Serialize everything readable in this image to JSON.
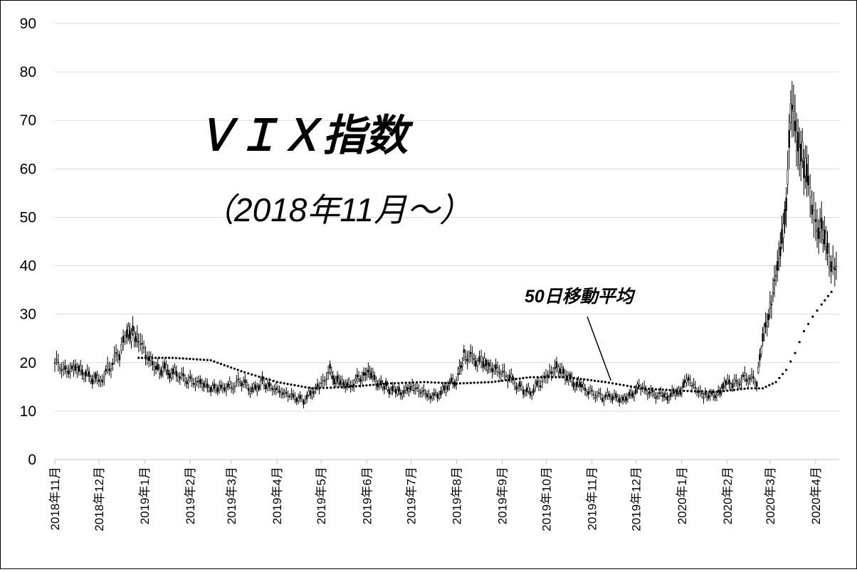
{
  "chart_data": {
    "type": "candlestick",
    "title": "ＶＩＸ指数",
    "subtitle": "（2018年11月～）",
    "ylim": [
      0,
      90
    ],
    "yticks": [
      0,
      10,
      20,
      30,
      40,
      50,
      60,
      70,
      80,
      90
    ],
    "grid": true,
    "month_labels": [
      "2018年11月",
      "2018年12月",
      "2019年1月",
      "2019年2月",
      "2019年3月",
      "2019年4月",
      "2019年5月",
      "2019年6月",
      "2019年7月",
      "2019年8月",
      "2019年9月",
      "2019年10月",
      "2019年11月",
      "2019年12月",
      "2020年1月",
      "2020年2月",
      "2020年3月",
      "2020年4月"
    ],
    "series": [
      {
        "name": "ＶＩＸ指数",
        "style": "candle",
        "x": [
          "2018-11-01",
          "2018-11-08",
          "2018-11-15",
          "2018-11-22",
          "2018-12-01",
          "2018-12-08",
          "2018-12-15",
          "2018-12-20",
          "2018-12-24",
          "2018-12-28",
          "2019-01-04",
          "2019-01-10",
          "2019-01-18",
          "2019-01-25",
          "2019-02-01",
          "2019-02-08",
          "2019-02-15",
          "2019-02-22",
          "2019-03-01",
          "2019-03-08",
          "2019-03-15",
          "2019-03-22",
          "2019-03-29",
          "2019-04-05",
          "2019-04-12",
          "2019-04-19",
          "2019-04-26",
          "2019-05-01",
          "2019-05-07",
          "2019-05-10",
          "2019-05-14",
          "2019-05-21",
          "2019-05-31",
          "2019-06-04",
          "2019-06-14",
          "2019-06-24",
          "2019-07-03",
          "2019-07-12",
          "2019-07-19",
          "2019-07-26",
          "2019-08-02",
          "2019-08-06",
          "2019-08-14",
          "2019-08-19",
          "2019-08-23",
          "2019-08-30",
          "2019-09-06",
          "2019-09-13",
          "2019-09-20",
          "2019-09-27",
          "2019-10-02",
          "2019-10-08",
          "2019-10-15",
          "2019-10-25",
          "2019-11-01",
          "2019-11-08",
          "2019-11-15",
          "2019-11-22",
          "2019-12-03",
          "2019-12-10",
          "2019-12-20",
          "2019-12-31",
          "2020-01-03",
          "2020-01-08",
          "2020-01-17",
          "2020-01-27",
          "2020-01-31",
          "2020-02-07",
          "2020-02-14",
          "2020-02-21",
          "2020-02-25",
          "2020-02-27",
          "2020-03-02",
          "2020-03-06",
          "2020-03-09",
          "2020-03-12",
          "2020-03-16",
          "2020-03-18",
          "2020-03-20",
          "2020-03-24",
          "2020-03-27",
          "2020-04-01",
          "2020-04-03",
          "2020-04-07",
          "2020-04-09",
          "2020-04-14"
        ],
        "values": [
          20,
          18,
          19,
          18,
          16,
          19,
          22,
          25,
          26,
          25,
          21,
          19,
          18,
          17,
          16,
          16,
          15,
          15,
          15,
          16,
          14,
          16,
          15,
          14,
          13,
          12,
          14,
          15,
          19,
          17,
          16,
          15,
          18,
          17,
          15,
          14,
          15,
          13,
          13,
          15,
          17,
          22,
          21,
          20,
          19,
          18,
          17,
          15,
          14,
          16,
          17,
          19,
          17,
          15,
          14,
          13,
          13,
          12,
          15,
          14,
          13,
          14,
          17,
          15,
          13,
          14,
          16,
          16,
          17,
          16,
          24,
          27,
          33,
          40,
          46,
          55,
          72,
          65,
          66,
          62,
          57,
          50,
          48,
          44,
          42,
          41
        ]
      },
      {
        "name": "50日移動平均",
        "style": "dotted",
        "x": [
          "2018-12-28",
          "2019-01-20",
          "2019-02-15",
          "2019-03-10",
          "2019-04-01",
          "2019-04-25",
          "2019-05-20",
          "2019-06-15",
          "2019-07-10",
          "2019-08-01",
          "2019-08-25",
          "2019-09-20",
          "2019-10-15",
          "2019-11-10",
          "2019-12-05",
          "2019-12-31",
          "2020-01-25",
          "2020-02-15",
          "2020-02-25",
          "2020-03-05",
          "2020-03-12",
          "2020-03-18",
          "2020-03-24",
          "2020-03-30",
          "2020-04-05",
          "2020-04-14"
        ],
        "values": [
          21,
          21,
          20.5,
          18,
          16,
          14.7,
          15,
          15.7,
          16,
          15.7,
          16,
          17,
          17,
          16,
          14.7,
          14.2,
          14,
          14.7,
          14.7,
          16,
          18.5,
          22,
          26.5,
          29.5,
          32,
          35.5
        ]
      }
    ],
    "annotations": [
      {
        "text": "50日移動平均",
        "target_series": "50日移動平均"
      }
    ]
  }
}
